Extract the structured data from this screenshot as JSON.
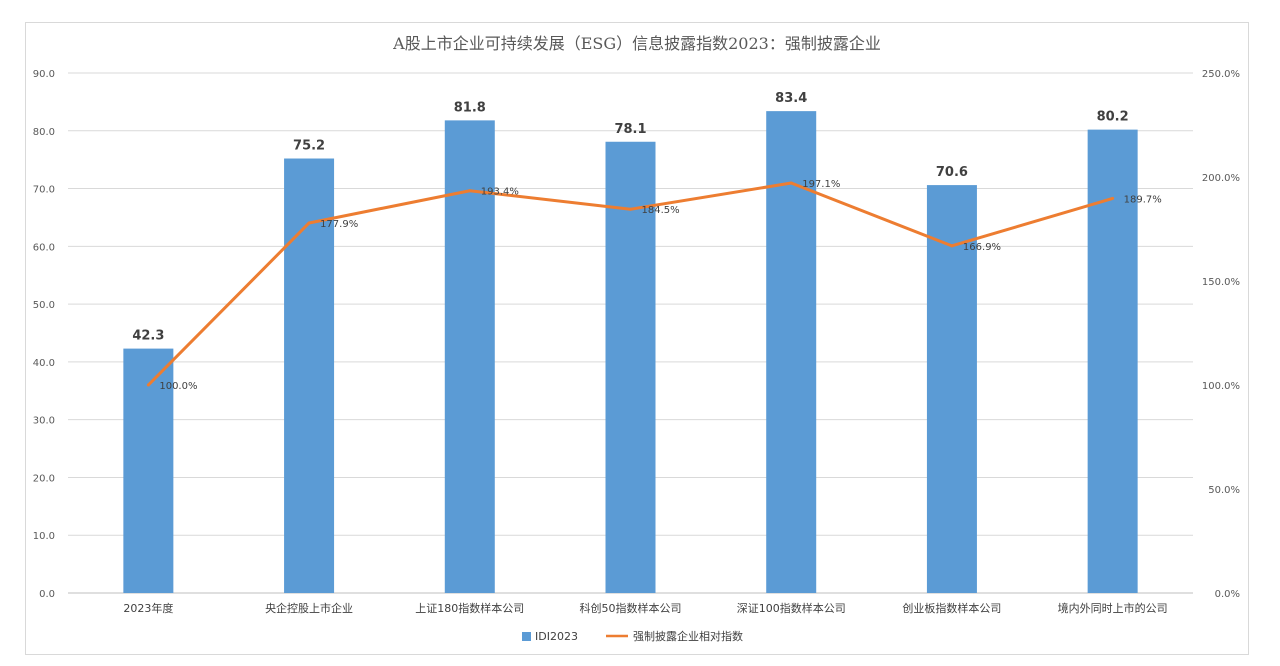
{
  "chart_data": {
    "type": "bar",
    "title": "A股上市企业可持续发展（ESG）信息披露指数2023：强制披露企业",
    "categories": [
      "2023年度",
      "央企控股上市企业",
      "上证180指数样本公司",
      "科创50指数样本公司",
      "深证100指数样本公司",
      "创业板指数样本公司",
      "境内外同时上市的公司"
    ],
    "series": [
      {
        "name": "IDI2023",
        "type": "bar",
        "axis": "left",
        "color": "#5b9bd5",
        "values": [
          42.3,
          75.2,
          81.8,
          78.1,
          83.4,
          70.6,
          80.2
        ],
        "labels": [
          "42.3",
          "75.2",
          "81.8",
          "78.1",
          "83.4",
          "70.6",
          "80.2"
        ]
      },
      {
        "name": "强制披露企业相对指数",
        "type": "line",
        "axis": "right",
        "color": "#ed7d31",
        "values": [
          100.0,
          177.9,
          193.4,
          184.5,
          197.1,
          166.9,
          189.7
        ],
        "labels": [
          "100.0%",
          "177.9%",
          "193.4%",
          "184.5%",
          "197.1%",
          "166.9%",
          "189.7%"
        ]
      }
    ],
    "y_left": {
      "ylim": [
        0,
        90
      ],
      "ticks": [
        "0.0",
        "10.0",
        "20.0",
        "30.0",
        "40.0",
        "50.0",
        "60.0",
        "70.0",
        "80.0",
        "90.0"
      ]
    },
    "y_right": {
      "ylim": [
        0,
        250
      ],
      "ticks": [
        "0.0%",
        "50.0%",
        "100.0%",
        "150.0%",
        "200.0%",
        "250.0%"
      ]
    },
    "grid": true,
    "legend_position": "bottom"
  }
}
